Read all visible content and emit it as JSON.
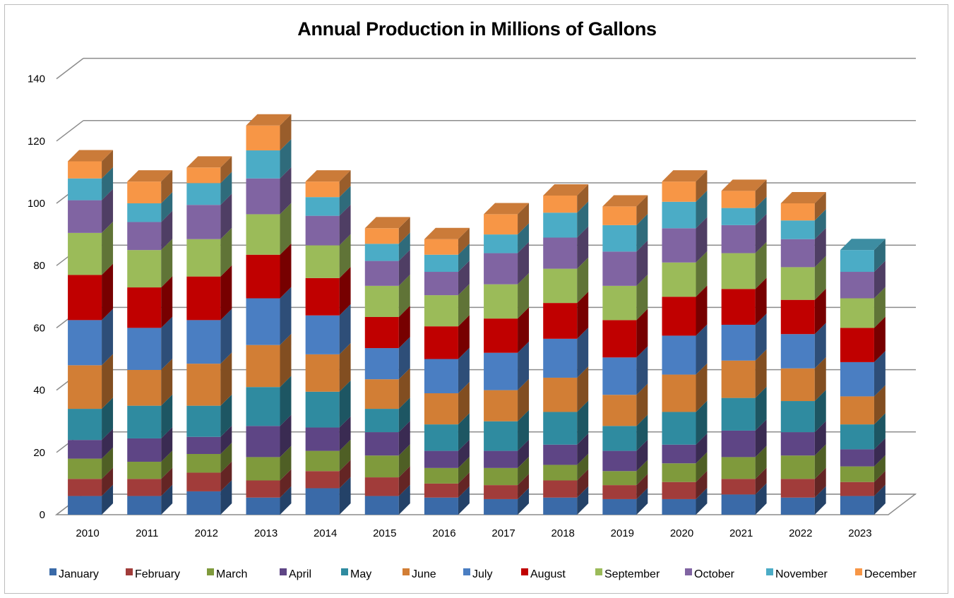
{
  "chart_data": {
    "type": "bar",
    "stacked": true,
    "title": "Annual Production in Millions of Gallons",
    "xlabel": "",
    "ylabel": "",
    "ylim": [
      0,
      140
    ],
    "yticks": [
      0,
      20,
      40,
      60,
      80,
      100,
      120,
      140
    ],
    "grid": true,
    "legend_position": "bottom",
    "categories": [
      "2010",
      "2011",
      "2012",
      "2013",
      "2014",
      "2015",
      "2016",
      "2017",
      "2018",
      "2019",
      "2020",
      "2021",
      "2022",
      "2023"
    ],
    "series": [
      {
        "name": "January",
        "color": "#3a6aa8",
        "values": [
          6,
          6,
          7.5,
          5.5,
          8.5,
          6,
          5.5,
          5,
          5.5,
          5,
          5,
          6.5,
          5.5,
          6
        ]
      },
      {
        "name": "February",
        "color": "#a13c3a",
        "values": [
          5.5,
          5.5,
          6,
          5.5,
          5.5,
          6,
          4.5,
          4.5,
          5.5,
          4.5,
          5.5,
          5,
          6,
          4.5
        ]
      },
      {
        "name": "March",
        "color": "#7f9a3c",
        "values": [
          6.5,
          5.5,
          6,
          7.5,
          6.5,
          7,
          5,
          5.5,
          5,
          4.5,
          6,
          7,
          7.5,
          5
        ]
      },
      {
        "name": "April",
        "color": "#5e4585",
        "values": [
          6,
          7.5,
          5.5,
          10,
          7.5,
          7.5,
          5.5,
          5.5,
          6.5,
          6.5,
          6,
          8.5,
          7.5,
          5.5
        ]
      },
      {
        "name": "May",
        "color": "#2f8ba0",
        "values": [
          10,
          10.5,
          10,
          12.5,
          11.5,
          7.5,
          8.5,
          9.5,
          10.5,
          8,
          10.5,
          10.5,
          10,
          8
        ]
      },
      {
        "name": "June",
        "color": "#d27e35",
        "values": [
          14,
          11.5,
          13.5,
          13.5,
          12,
          9.5,
          10,
          10,
          11,
          10,
          12,
          12,
          10.5,
          9
        ]
      },
      {
        "name": "July",
        "color": "#4a7ec2",
        "values": [
          14.5,
          13.5,
          14,
          15,
          12.5,
          10,
          11,
          12,
          12.5,
          12,
          12.5,
          11.5,
          11,
          11
        ]
      },
      {
        "name": "August",
        "color": "#c00000",
        "values": [
          14.5,
          13,
          14,
          14,
          12,
          10,
          10.5,
          11,
          11.5,
          12,
          12.5,
          11.5,
          11,
          11
        ]
      },
      {
        "name": "September",
        "color": "#9bbb59",
        "values": [
          13.5,
          12,
          12,
          13,
          10.5,
          10,
          10,
          11,
          11,
          11,
          11,
          11.5,
          10.5,
          9.5
        ]
      },
      {
        "name": "October",
        "color": "#8064a2",
        "values": [
          10.5,
          9,
          11,
          11.5,
          9.5,
          8,
          7.5,
          10,
          10,
          11,
          11,
          9,
          9,
          8.5
        ]
      },
      {
        "name": "November",
        "color": "#4bacc6",
        "values": [
          7,
          6,
          7,
          9,
          6,
          5.5,
          5.5,
          6,
          8,
          8.5,
          8.5,
          5.5,
          6,
          7
        ]
      },
      {
        "name": "December",
        "color": "#f79646",
        "values": [
          5.5,
          7,
          5,
          8,
          5,
          5,
          5,
          6.5,
          5.5,
          6,
          6.5,
          5.5,
          5.5,
          0
        ]
      }
    ]
  }
}
